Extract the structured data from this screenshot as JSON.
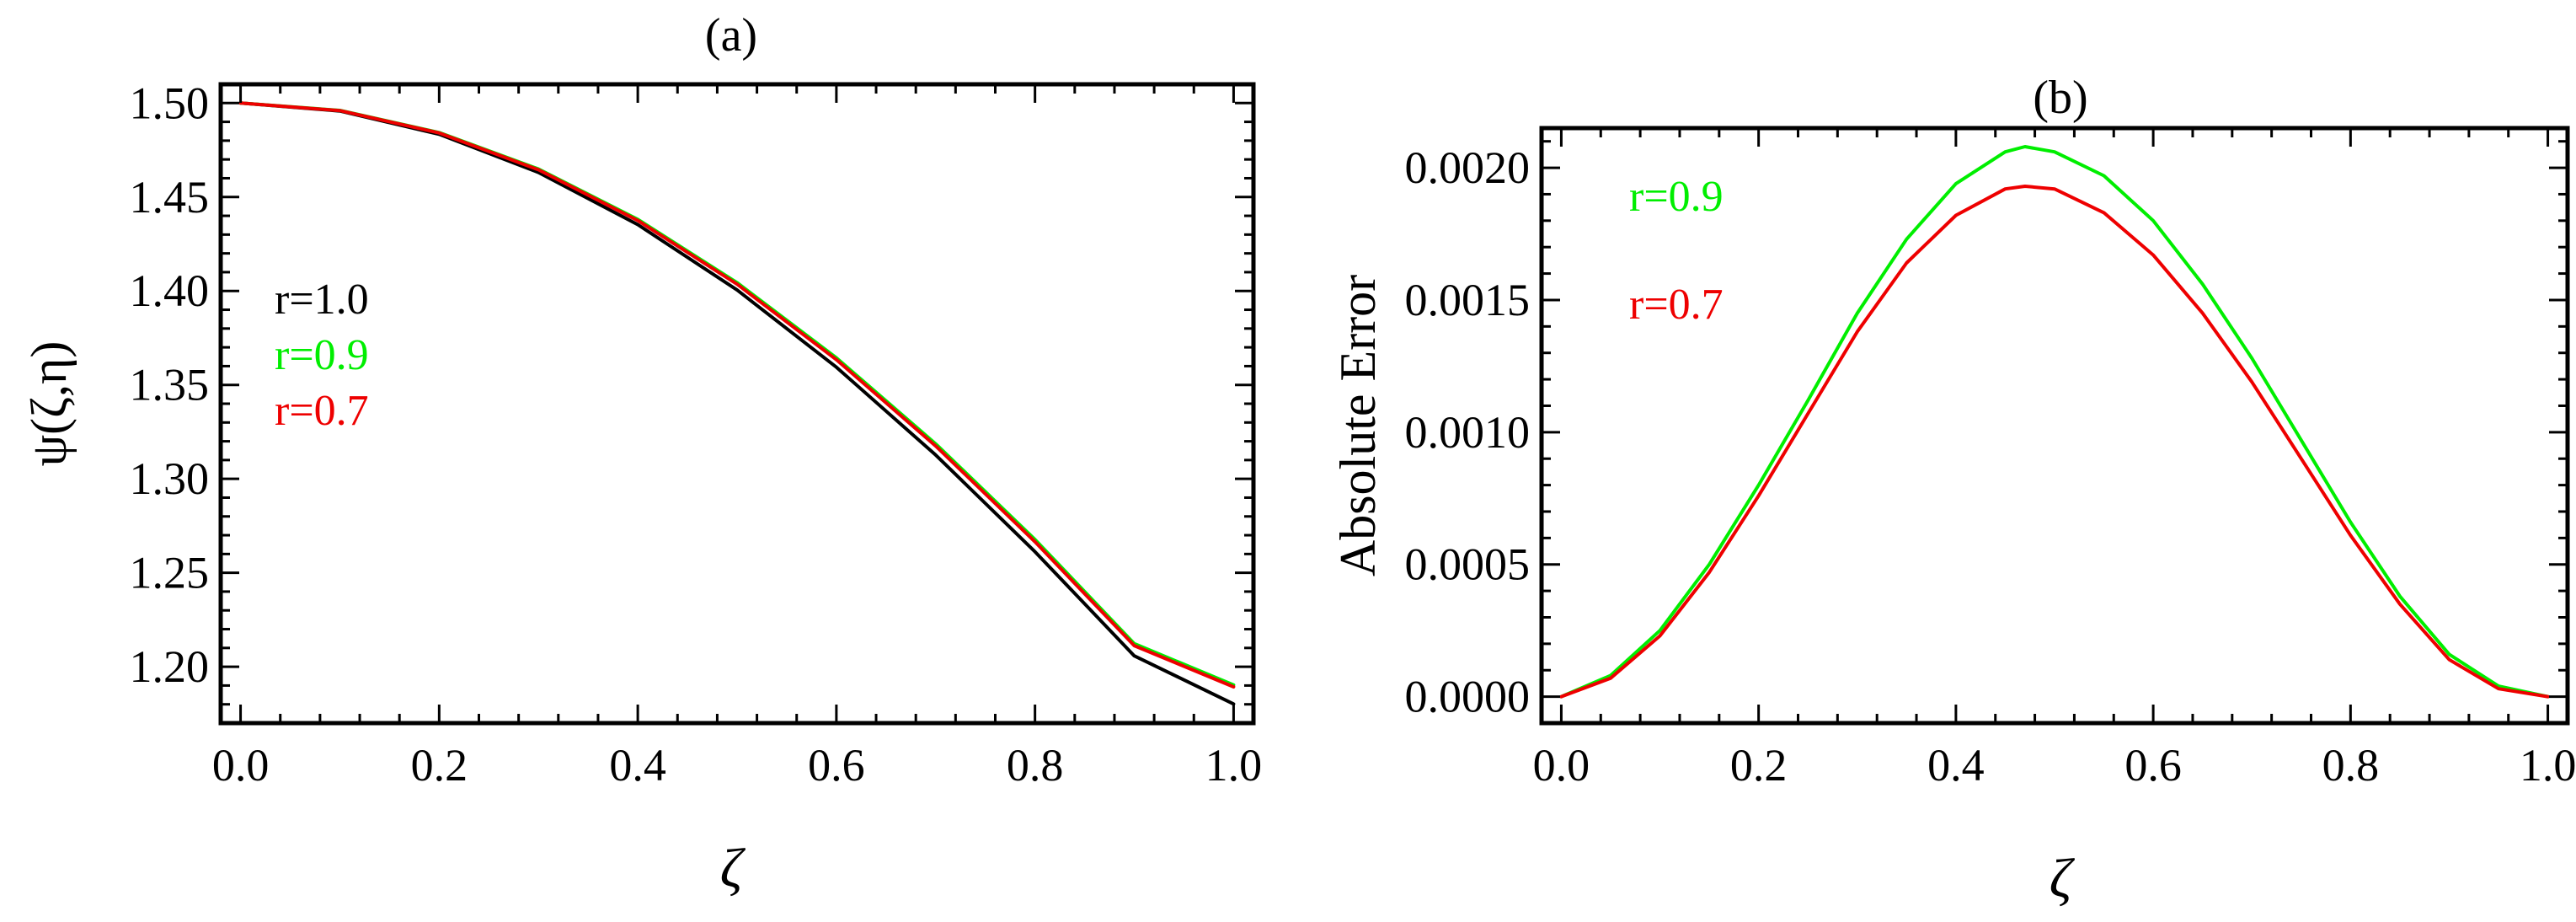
{
  "chart_data": [
    {
      "type": "line",
      "title": "(a)",
      "xlabel": "ζ",
      "ylabel": "ψ(ζ,η)",
      "xlim": [
        -0.02,
        1.02
      ],
      "ylim": [
        1.17,
        1.51
      ],
      "xticks": [
        0.0,
        0.2,
        0.4,
        0.6,
        0.8,
        1.0
      ],
      "xtick_labels": [
        "0.0",
        "0.2",
        "0.4",
        "0.6",
        "0.8",
        "1.0"
      ],
      "yticks": [
        1.2,
        1.25,
        1.3,
        1.35,
        1.4,
        1.45,
        1.5
      ],
      "ytick_labels": [
        "1.20",
        "1.25",
        "1.30",
        "1.35",
        "1.40",
        "1.45",
        "1.50"
      ],
      "legend_placement": "middle-left",
      "x": [
        0.0,
        0.1,
        0.2,
        0.3,
        0.4,
        0.5,
        0.6,
        0.7,
        0.8,
        0.9,
        1.0
      ],
      "series": [
        {
          "name": "r=1.0",
          "color": "#000000",
          "values": [
            1.5,
            1.4958,
            1.4834,
            1.4631,
            1.4353,
            1.4005,
            1.3594,
            1.3127,
            1.2612,
            1.2058,
            1.1802
          ]
        },
        {
          "name": "r=0.9",
          "color": "#00ee00",
          "values": [
            1.5,
            1.4961,
            1.4843,
            1.4649,
            1.4381,
            1.4044,
            1.3644,
            1.3186,
            1.2677,
            1.2123,
            1.1903
          ]
        },
        {
          "name": "r=0.7",
          "color": "#ee0000",
          "values": [
            1.5,
            1.496,
            1.4841,
            1.4645,
            1.4375,
            1.4036,
            1.3634,
            1.3175,
            1.2665,
            1.2112,
            1.1893
          ]
        }
      ]
    },
    {
      "type": "line",
      "title": "(b)",
      "xlabel": "ζ",
      "ylabel": "Absolute Error",
      "xlim": [
        -0.02,
        1.02
      ],
      "ylim": [
        -0.0001,
        0.00215
      ],
      "xticks": [
        0.0,
        0.2,
        0.4,
        0.6,
        0.8,
        1.0
      ],
      "xtick_labels": [
        "0.0",
        "0.2",
        "0.4",
        "0.6",
        "0.8",
        "1.0"
      ],
      "yticks": [
        0.0,
        0.0005,
        0.001,
        0.0015,
        0.002
      ],
      "ytick_labels": [
        "0.0000",
        "0.0005",
        "0.0010",
        "0.0015",
        "0.0020"
      ],
      "legend_placement": "top-left",
      "x": [
        0.0,
        0.05,
        0.1,
        0.15,
        0.2,
        0.25,
        0.3,
        0.35,
        0.4,
        0.45,
        0.47,
        0.5,
        0.55,
        0.6,
        0.65,
        0.7,
        0.75,
        0.8,
        0.85,
        0.9,
        0.95,
        1.0
      ],
      "series": [
        {
          "name": "r=0.9",
          "color": "#00ee00",
          "values": [
            0.0,
            8e-05,
            0.00025,
            0.0005,
            0.0008,
            0.00112,
            0.00145,
            0.00173,
            0.00194,
            0.00206,
            0.00208,
            0.00206,
            0.00197,
            0.0018,
            0.00156,
            0.00128,
            0.00097,
            0.00066,
            0.00038,
            0.00016,
            4e-05,
            0.0
          ]
        },
        {
          "name": "r=0.7",
          "color": "#ee0000",
          "values": [
            0.0,
            7e-05,
            0.00023,
            0.00047,
            0.00076,
            0.00107,
            0.00138,
            0.00164,
            0.00182,
            0.00192,
            0.00193,
            0.00192,
            0.00183,
            0.00167,
            0.00145,
            0.00119,
            0.0009,
            0.00061,
            0.00035,
            0.00014,
            3e-05,
            0.0
          ]
        }
      ]
    }
  ]
}
